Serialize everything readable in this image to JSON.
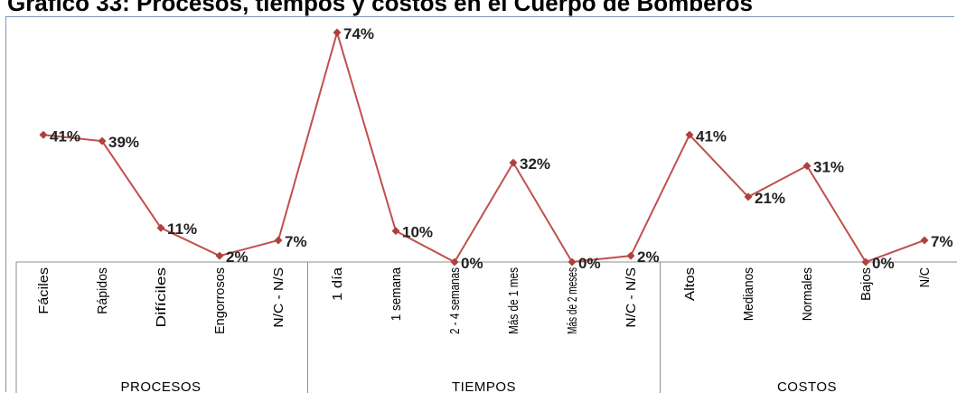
{
  "title": "Gráfico 33: Procesos, tiempos y costos en el Cuerpo de Bomberos",
  "chart_data": {
    "type": "line",
    "title": "Gráfico 33: Procesos, tiempos y costos en el Cuerpo de Bomberos",
    "line_color": "#c0504d",
    "marker_color": "#b0403d",
    "groups": [
      {
        "name": "PROCESOS",
        "categories": [
          "Fáciles",
          "Rápidos",
          "Difíciles",
          "Engorrosos",
          "N/C - N/S"
        ],
        "values": [
          41,
          39,
          11,
          2,
          7
        ],
        "labels": [
          "41%",
          "39%",
          "11%",
          "2%",
          "7%"
        ]
      },
      {
        "name": "TIEMPOS",
        "categories": [
          "1 día",
          "1 semana",
          "2 - 4 semanas",
          "Más de 1 mes",
          "Más de 2 meses",
          "N/C - N/S"
        ],
        "values": [
          74,
          10,
          0,
          32,
          0,
          2
        ],
        "labels": [
          "74%",
          "10%",
          "0%",
          "32%",
          "0%",
          "2%"
        ]
      },
      {
        "name": "COSTOS",
        "categories": [
          "Altos",
          "Medianos",
          "Normales",
          "Bajos",
          "N/C"
        ],
        "values": [
          41,
          21,
          31,
          0,
          7
        ],
        "labels": [
          "41%",
          "21%",
          "31%",
          "0%",
          "7%"
        ]
      }
    ],
    "grid": false,
    "legend": "none"
  }
}
